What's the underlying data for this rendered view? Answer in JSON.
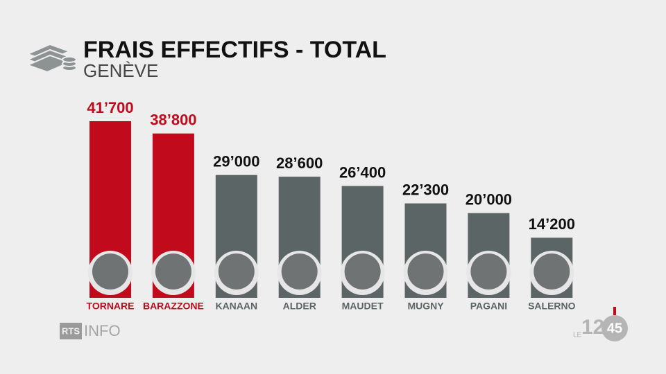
{
  "chart_data": {
    "type": "bar",
    "title": "FRAIS EFFECTIFS - TOTAL",
    "subtitle": "GENÈVE",
    "categories": [
      "TORNARE",
      "BARAZZONE",
      "KANAAN",
      "ALDER",
      "MAUDET",
      "MUGNY",
      "PAGANI",
      "SALERNO"
    ],
    "values": [
      41700,
      38800,
      29000,
      28600,
      26400,
      22300,
      20000,
      14200
    ],
    "value_labels": [
      "41’700",
      "38’800",
      "29’000",
      "28’600",
      "26’400",
      "22’300",
      "20’000",
      "14’200"
    ],
    "colors": [
      "#c10a1c",
      "#c10a1c",
      "#5b6566",
      "#5b6566",
      "#5b6566",
      "#5b6566",
      "#5b6566",
      "#5b6566"
    ]
  },
  "branding": {
    "channel": "RTS",
    "program": "INFO",
    "show_prefix": "LE",
    "show_hours": "12",
    "show_minutes": "45"
  }
}
